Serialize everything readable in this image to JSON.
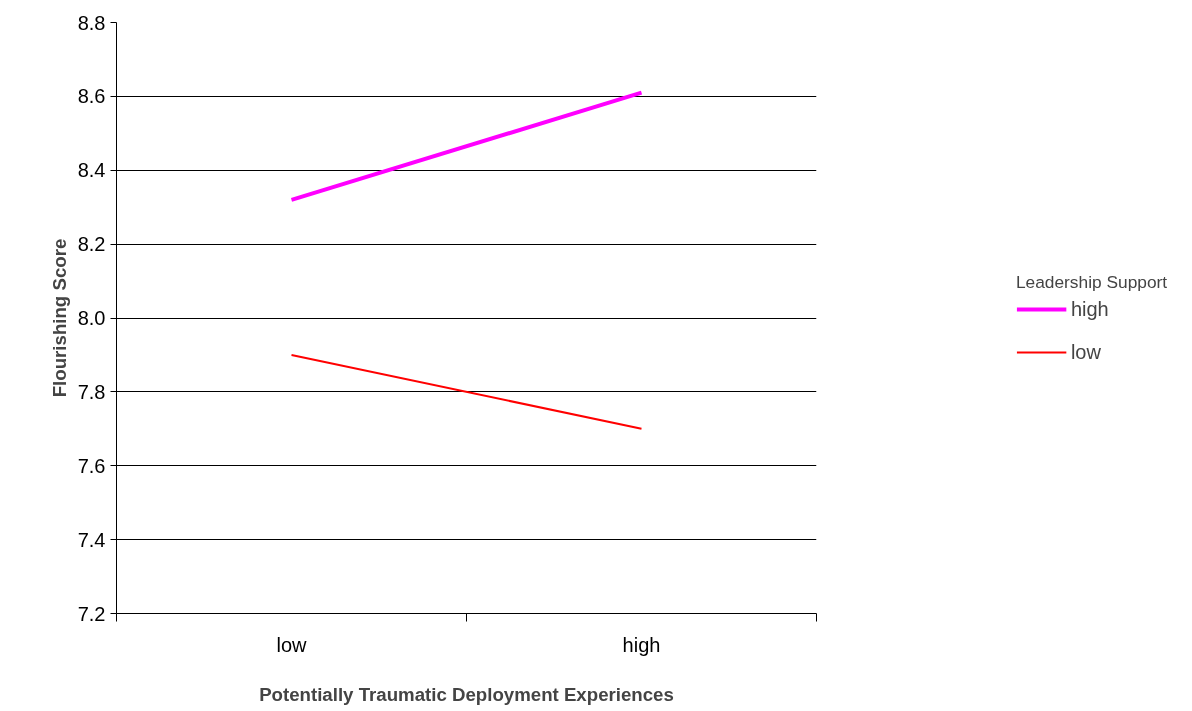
{
  "chart_data": {
    "type": "line",
    "xlabel": "Potentially Traumatic Deployment Experiences",
    "ylabel": "Flourishing Score",
    "legend_title": "Leadership Support",
    "categories": [
      "low",
      "high"
    ],
    "series": [
      {
        "name": "high",
        "color": "#ff00ff",
        "values": [
          8.32,
          8.61
        ]
      },
      {
        "name": "low",
        "color": "#ff0000",
        "values": [
          7.9,
          7.7
        ]
      }
    ],
    "ylim": [
      7.2,
      8.8
    ],
    "yticks": [
      7.2,
      7.4,
      7.6,
      7.8,
      {
        "value": 8,
        "label": "8.0"
      },
      8.2,
      8.4,
      8.6,
      8.8
    ],
    "grid": "y",
    "legend": "right",
    "marker": "none",
    "line_style": "solid"
  }
}
